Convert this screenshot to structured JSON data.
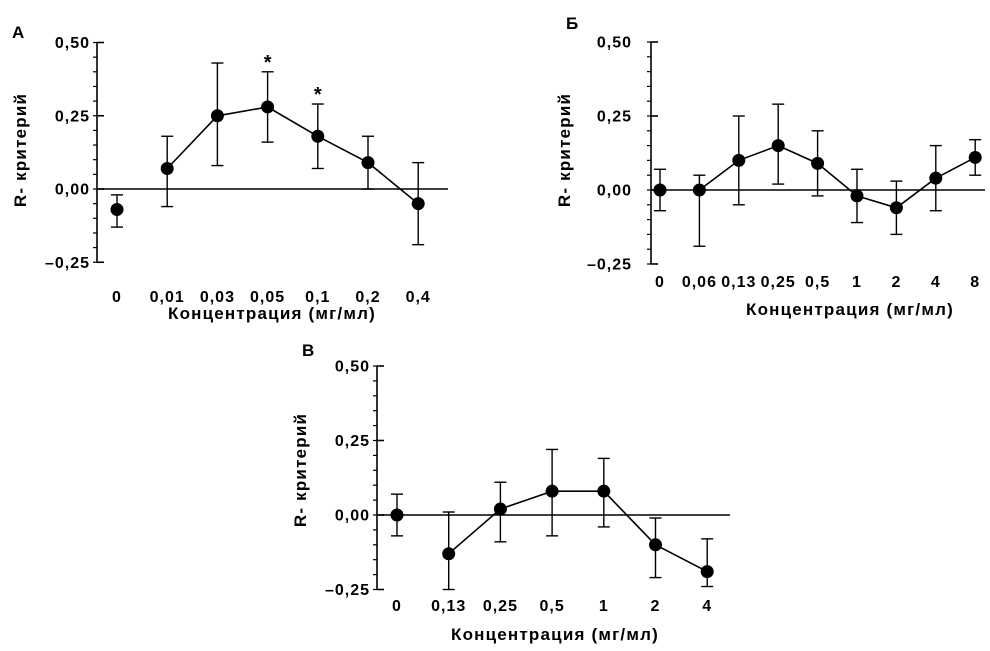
{
  "colors": {
    "ink": "#000000",
    "background": "#ffffff"
  },
  "chart_data": [
    {
      "type": "line",
      "panel_label": "А",
      "ylabel": "R- критерий",
      "xlabel": "Концентрация (мг/мл)",
      "categories": [
        "0",
        "0,01",
        "0,03",
        "0,05",
        "0,1",
        "0,2",
        "0,4"
      ],
      "values": [
        -0.07,
        0.07,
        0.25,
        0.28,
        0.18,
        0.09,
        -0.05
      ],
      "error_low": [
        -0.13,
        -0.06,
        0.08,
        0.16,
        0.07,
        0.0,
        -0.19
      ],
      "error_high": [
        -0.02,
        0.18,
        0.43,
        0.4,
        0.29,
        0.18,
        0.09
      ],
      "significant": [
        false,
        false,
        false,
        true,
        true,
        false,
        false
      ],
      "significance_mark": "*",
      "ylim": [
        -0.25,
        0.5
      ],
      "yticks": [
        0.5,
        0.25,
        0,
        -0.25
      ],
      "ytick_labels": [
        "0,50",
        "0,25",
        "0,00",
        "–0,25"
      ],
      "reference_line_y": 0,
      "grid": false
    },
    {
      "type": "line",
      "panel_label": "Б",
      "ylabel": "R- критерий",
      "xlabel": "Концентрация (мг/мл)",
      "categories": [
        "0",
        "0,06",
        "0,13",
        "0,25",
        "0,5",
        "1",
        "2",
        "4",
        "8"
      ],
      "values": [
        0.0,
        0.0,
        0.1,
        0.15,
        0.09,
        -0.02,
        -0.06,
        0.04,
        0.11
      ],
      "error_low": [
        -0.07,
        -0.19,
        -0.05,
        0.02,
        -0.02,
        -0.11,
        -0.15,
        -0.07,
        0.05
      ],
      "error_high": [
        0.07,
        0.05,
        0.25,
        0.29,
        0.2,
        0.07,
        0.03,
        0.15,
        0.17
      ],
      "ylim": [
        -0.25,
        0.5
      ],
      "yticks": [
        0.5,
        0.25,
        0,
        -0.25
      ],
      "ytick_labels": [
        "0,50",
        "0,25",
        "0,00",
        "–0,25"
      ],
      "reference_line_y": 0,
      "grid": false
    },
    {
      "type": "line",
      "panel_label": "В",
      "ylabel": "R- критерий",
      "xlabel": "Концентрация (мг/мл)",
      "categories": [
        "0",
        "0,13",
        "0,25",
        "0,5",
        "1",
        "2",
        "4"
      ],
      "values": [
        0.0,
        -0.13,
        0.02,
        0.08,
        0.08,
        -0.1,
        -0.19
      ],
      "error_low": [
        -0.07,
        -0.25,
        -0.09,
        -0.07,
        -0.04,
        -0.21,
        -0.24
      ],
      "error_high": [
        0.07,
        0.01,
        0.11,
        0.22,
        0.19,
        -0.01,
        -0.08
      ],
      "ylim": [
        -0.25,
        0.5
      ],
      "yticks": [
        0.5,
        0.25,
        0,
        -0.25
      ],
      "ytick_labels": [
        "0,50",
        "0,25",
        "0,00",
        "–0,25"
      ],
      "reference_line_y": 0,
      "grid": false
    }
  ]
}
